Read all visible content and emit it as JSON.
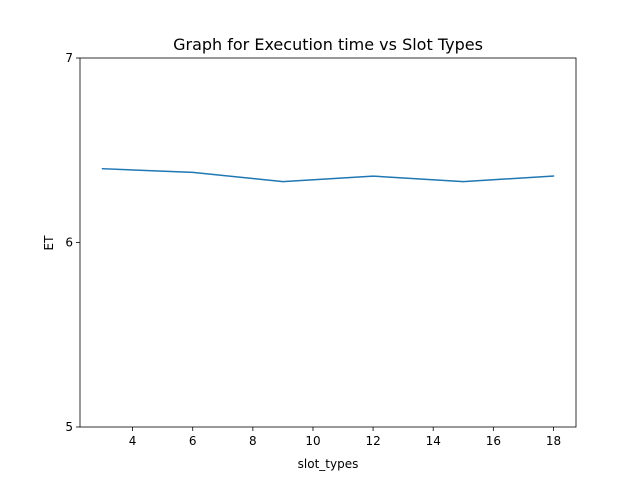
{
  "chart_data": {
    "type": "line",
    "title": "Graph for Execution time vs Slot Types",
    "xlabel": "slot_types",
    "ylabel": "ET",
    "x": [
      3,
      6,
      9,
      12,
      15,
      18
    ],
    "series": [
      {
        "values": [
          6.4,
          6.38,
          6.33,
          6.36,
          6.33,
          6.36
        ],
        "color": "#1f77b4"
      }
    ],
    "xlim": [
      2.25,
      18.75
    ],
    "ylim": [
      5,
      7
    ],
    "xticks": [
      4,
      6,
      8,
      10,
      12,
      14,
      16,
      18
    ],
    "yticks": [
      5,
      6,
      7
    ],
    "grid": false,
    "legend": "none"
  }
}
